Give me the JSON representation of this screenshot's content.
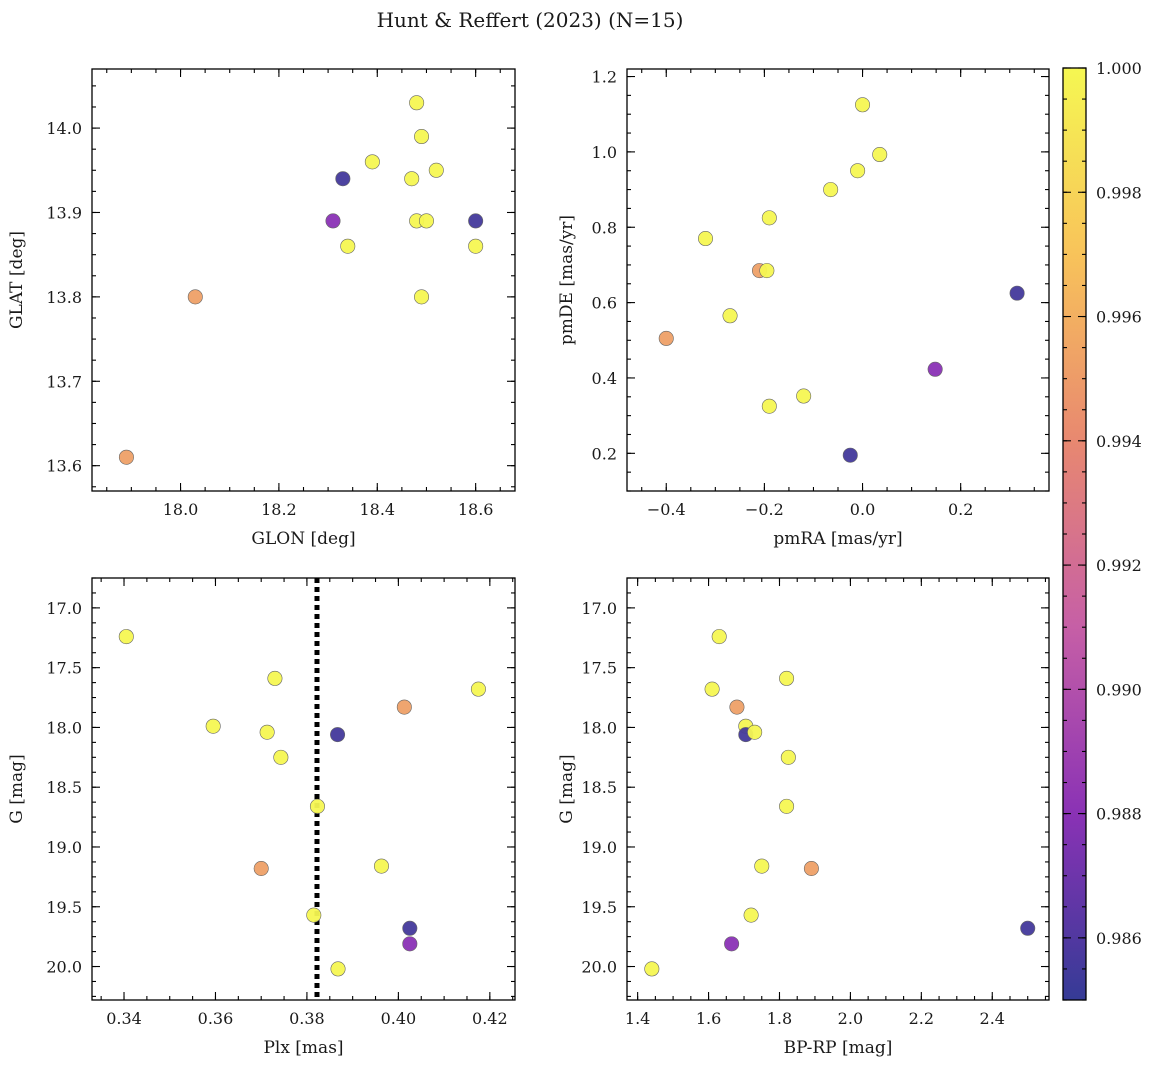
{
  "title": "Hunt & Reffert (2023) (N=15)",
  "colorbar": {
    "colormap": "plasma",
    "range": [
      0.985,
      1.0
    ],
    "ticks": [
      "0.986",
      "0.988",
      "0.990",
      "0.992",
      "0.994",
      "0.996",
      "0.998",
      "1.000"
    ],
    "tick_values": [
      0.986,
      0.988,
      0.99,
      0.992,
      0.994,
      0.996,
      0.998,
      1.0
    ]
  },
  "chart_data": [
    {
      "type": "scatter",
      "xlabel": "GLON [deg]",
      "ylabel": "GLAT [deg]",
      "xlim": [
        17.82,
        18.68
      ],
      "ylim": [
        13.57,
        14.07
      ],
      "xticks": [
        18.0,
        18.2,
        18.4,
        18.6
      ],
      "xtick_labels": [
        "18.0",
        "18.2",
        "18.4",
        "18.6"
      ],
      "yticks": [
        13.6,
        13.7,
        13.8,
        13.9,
        14.0
      ],
      "ytick_labels": [
        "13.6",
        "13.7",
        "13.8",
        "13.9",
        "14.0"
      ],
      "points": [
        {
          "x": 17.89,
          "y": 13.61,
          "c": 0.9952
        },
        {
          "x": 18.03,
          "y": 13.8,
          "c": 0.9952
        },
        {
          "x": 18.31,
          "y": 13.89,
          "c": 0.988
        },
        {
          "x": 18.33,
          "y": 13.94,
          "c": 0.9855
        },
        {
          "x": 18.34,
          "y": 13.86,
          "c": 1.0
        },
        {
          "x": 18.39,
          "y": 13.96,
          "c": 1.0
        },
        {
          "x": 18.47,
          "y": 13.94,
          "c": 1.0
        },
        {
          "x": 18.48,
          "y": 14.03,
          "c": 1.0
        },
        {
          "x": 18.49,
          "y": 13.99,
          "c": 1.0
        },
        {
          "x": 18.48,
          "y": 13.89,
          "c": 1.0
        },
        {
          "x": 18.5,
          "y": 13.89,
          "c": 1.0
        },
        {
          "x": 18.49,
          "y": 13.8,
          "c": 1.0
        },
        {
          "x": 18.52,
          "y": 13.95,
          "c": 1.0
        },
        {
          "x": 18.6,
          "y": 13.86,
          "c": 1.0
        },
        {
          "x": 18.6,
          "y": 13.89,
          "c": 0.9855
        }
      ]
    },
    {
      "type": "scatter",
      "xlabel": "pmRA [mas/yr]",
      "ylabel": "pmDE [mas/yr]",
      "xlim": [
        -0.48,
        0.38
      ],
      "ylim": [
        0.1,
        1.22
      ],
      "xticks": [
        -0.4,
        -0.2,
        0.0,
        0.2
      ],
      "xtick_labels": [
        "−0.4",
        "−0.2",
        "0.0",
        "0.2"
      ],
      "yticks": [
        0.2,
        0.4,
        0.6,
        0.8,
        1.0,
        1.2
      ],
      "ytick_labels": [
        "0.2",
        "0.4",
        "0.6",
        "0.8",
        "1.0",
        "1.2"
      ],
      "points": [
        {
          "x": -0.4,
          "y": 0.505,
          "c": 0.9952
        },
        {
          "x": -0.32,
          "y": 0.77,
          "c": 1.0
        },
        {
          "x": -0.27,
          "y": 0.565,
          "c": 1.0
        },
        {
          "x": -0.21,
          "y": 0.685,
          "c": 0.9952
        },
        {
          "x": -0.195,
          "y": 0.685,
          "c": 1.0
        },
        {
          "x": -0.19,
          "y": 0.825,
          "c": 1.0
        },
        {
          "x": -0.19,
          "y": 0.325,
          "c": 1.0
        },
        {
          "x": -0.12,
          "y": 0.352,
          "c": 1.0
        },
        {
          "x": -0.065,
          "y": 0.9,
          "c": 1.0
        },
        {
          "x": -0.025,
          "y": 0.195,
          "c": 0.9855
        },
        {
          "x": -0.01,
          "y": 0.95,
          "c": 1.0
        },
        {
          "x": 0.0,
          "y": 1.125,
          "c": 1.0
        },
        {
          "x": 0.035,
          "y": 0.993,
          "c": 1.0
        },
        {
          "x": 0.148,
          "y": 0.423,
          "c": 0.988
        },
        {
          "x": 0.315,
          "y": 0.625,
          "c": 0.9855
        }
      ]
    },
    {
      "type": "scatter",
      "xlabel": "Plx [mas]",
      "ylabel": "G [mag]",
      "xlim": [
        0.333,
        0.4255
      ],
      "ylim": [
        20.28,
        16.75
      ],
      "y_inverted": true,
      "xticks": [
        0.34,
        0.36,
        0.38,
        0.4,
        0.42
      ],
      "xtick_labels": [
        "0.34",
        "0.36",
        "0.38",
        "0.40",
        "0.42"
      ],
      "yticks": [
        17.0,
        17.5,
        18.0,
        18.5,
        19.0,
        19.5,
        20.0
      ],
      "ytick_labels": [
        "17.0",
        "17.5",
        "18.0",
        "18.5",
        "19.0",
        "19.5",
        "20.0"
      ],
      "vline": 0.3822,
      "points": [
        {
          "x": 0.3405,
          "y": 17.24,
          "c": 1.0
        },
        {
          "x": 0.3595,
          "y": 17.99,
          "c": 1.0
        },
        {
          "x": 0.3713,
          "y": 18.04,
          "c": 1.0
        },
        {
          "x": 0.373,
          "y": 17.59,
          "c": 1.0
        },
        {
          "x": 0.3743,
          "y": 18.25,
          "c": 1.0
        },
        {
          "x": 0.37,
          "y": 19.18,
          "c": 0.9952
        },
        {
          "x": 0.3815,
          "y": 19.57,
          "c": 1.0
        },
        {
          "x": 0.3823,
          "y": 18.66,
          "c": 1.0
        },
        {
          "x": 0.3867,
          "y": 18.06,
          "c": 0.9855
        },
        {
          "x": 0.3868,
          "y": 20.02,
          "c": 1.0
        },
        {
          "x": 0.3963,
          "y": 19.16,
          "c": 1.0
        },
        {
          "x": 0.4013,
          "y": 17.83,
          "c": 0.9952
        },
        {
          "x": 0.4025,
          "y": 19.68,
          "c": 0.9855
        },
        {
          "x": 0.4025,
          "y": 19.81,
          "c": 0.988
        },
        {
          "x": 0.4175,
          "y": 17.68,
          "c": 1.0
        }
      ]
    },
    {
      "type": "scatter",
      "xlabel": "BP-RP [mag]",
      "ylabel": "G [mag]",
      "xlim": [
        1.37,
        2.56
      ],
      "ylim": [
        20.28,
        16.75
      ],
      "y_inverted": true,
      "xticks": [
        1.4,
        1.6,
        1.8,
        2.0,
        2.2,
        2.4
      ],
      "xtick_labels": [
        "1.4",
        "1.6",
        "1.8",
        "2.0",
        "2.2",
        "2.4"
      ],
      "yticks": [
        17.0,
        17.5,
        18.0,
        18.5,
        19.0,
        19.5,
        20.0
      ],
      "ytick_labels": [
        "17.0",
        "17.5",
        "18.0",
        "18.5",
        "19.0",
        "19.5",
        "20.0"
      ],
      "points": [
        {
          "x": 1.44,
          "y": 20.02,
          "c": 1.0
        },
        {
          "x": 1.61,
          "y": 17.68,
          "c": 1.0
        },
        {
          "x": 1.63,
          "y": 17.24,
          "c": 1.0
        },
        {
          "x": 1.665,
          "y": 19.81,
          "c": 0.988
        },
        {
          "x": 1.68,
          "y": 17.83,
          "c": 0.9952
        },
        {
          "x": 1.705,
          "y": 17.99,
          "c": 1.0
        },
        {
          "x": 1.705,
          "y": 18.06,
          "c": 0.9855
        },
        {
          "x": 1.72,
          "y": 19.57,
          "c": 1.0
        },
        {
          "x": 1.73,
          "y": 18.04,
          "c": 1.0
        },
        {
          "x": 1.75,
          "y": 19.16,
          "c": 1.0
        },
        {
          "x": 1.82,
          "y": 17.59,
          "c": 1.0
        },
        {
          "x": 1.82,
          "y": 18.66,
          "c": 1.0
        },
        {
          "x": 1.825,
          "y": 18.25,
          "c": 1.0
        },
        {
          "x": 1.89,
          "y": 19.18,
          "c": 0.9952
        },
        {
          "x": 2.5,
          "y": 19.68,
          "c": 0.9855
        }
      ]
    }
  ]
}
